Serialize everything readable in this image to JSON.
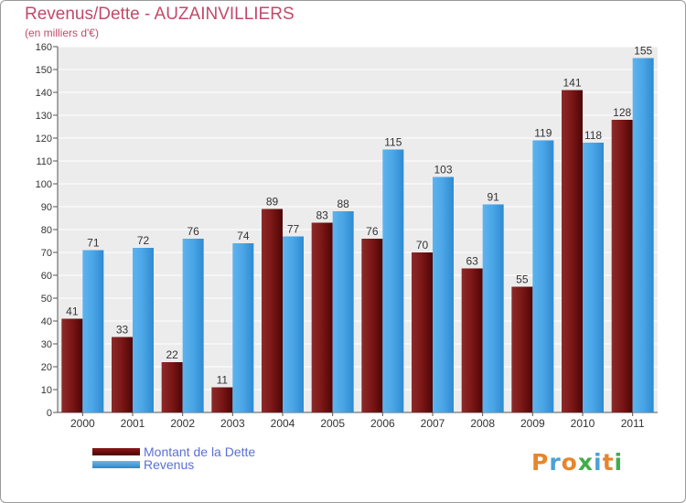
{
  "title": "Revenus/Dette - AUZAINVILLIERS",
  "subtitle": "(en milliers d'€)",
  "chart_data": {
    "type": "bar",
    "title": "Revenus/Dette - AUZAINVILLIERS",
    "subtitle": "(en milliers d'€)",
    "xlabel": "",
    "ylabel": "",
    "ylim": [
      0,
      160
    ],
    "yticks": [
      0,
      10,
      20,
      30,
      40,
      50,
      60,
      70,
      80,
      90,
      100,
      110,
      120,
      130,
      140,
      150,
      160
    ],
    "grid": true,
    "legend_position": "bottom-left",
    "categories": [
      "2000",
      "2001",
      "2002",
      "2003",
      "2004",
      "2005",
      "2006",
      "2007",
      "2008",
      "2009",
      "2010",
      "2011"
    ],
    "series": [
      {
        "name": "Montant de la Dette",
        "color": "#6e0c0c",
        "values": [
          41,
          33,
          22,
          11,
          89,
          83,
          76,
          70,
          63,
          55,
          141,
          128
        ]
      },
      {
        "name": "Revenus",
        "color": "#46a3e6",
        "values": [
          71,
          72,
          76,
          74,
          77,
          88,
          115,
          103,
          91,
          119,
          118,
          155
        ]
      }
    ]
  },
  "legend": {
    "debt_label": "Montant de la Dette",
    "revenue_label": "Revenus"
  },
  "logo": {
    "text": "Proxiti",
    "colors": [
      "#e8862a",
      "#4aa2d8",
      "#e8862a",
      "#3fae49",
      "#4aa2d8",
      "#e8862a",
      "#3fae49"
    ]
  }
}
